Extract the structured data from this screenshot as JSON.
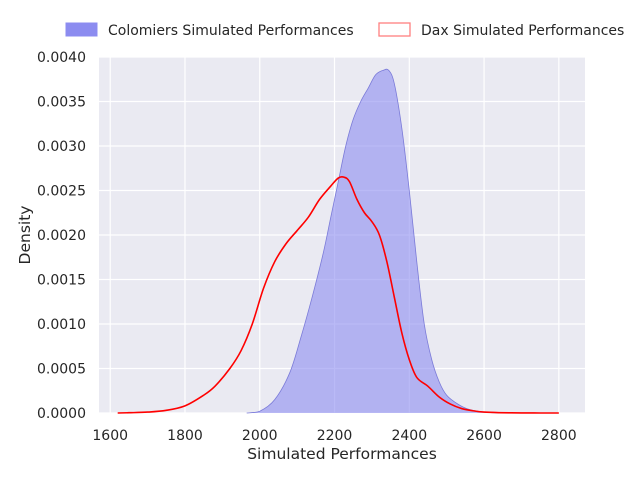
{
  "chart_data": {
    "type": "area",
    "title": "",
    "xlabel": "Simulated Performances",
    "ylabel": "Density",
    "xlim": [
      1570,
      2870
    ],
    "ylim": [
      0,
      0.004
    ],
    "xticks": [
      1600,
      1800,
      2000,
      2200,
      2400,
      2600,
      2800
    ],
    "yticks": [
      0.0,
      0.0005,
      0.001,
      0.0015,
      0.002,
      0.0025,
      0.003,
      0.0035,
      0.004
    ],
    "xtick_labels": [
      "1600",
      "1800",
      "2000",
      "2200",
      "2400",
      "2600",
      "2800"
    ],
    "ytick_labels": [
      "0.0000",
      "0.0005",
      "0.0010",
      "0.0015",
      "0.0020",
      "0.0025",
      "0.0030",
      "0.0035",
      "0.0040"
    ],
    "grid": true,
    "legend_position": "top",
    "series": [
      {
        "name": "Colomiers Simulated Performances",
        "style": "filled",
        "color": "#8c8cf0",
        "x": [
          1965,
          2000,
          2040,
          2080,
          2110,
          2140,
          2170,
          2190,
          2210,
          2230,
          2250,
          2270,
          2290,
          2310,
          2330,
          2345,
          2360,
          2380,
          2400,
          2420,
          2440,
          2460,
          2480,
          2500,
          2530,
          2560,
          2600,
          2640
        ],
        "y": [
          0.0,
          2e-05,
          0.00015,
          0.00045,
          0.00085,
          0.0013,
          0.0018,
          0.0022,
          0.0026,
          0.003,
          0.0033,
          0.0035,
          0.00365,
          0.0038,
          0.00385,
          0.00385,
          0.0037,
          0.0032,
          0.0025,
          0.0017,
          0.001,
          0.0006,
          0.00035,
          0.0002,
          0.0001,
          4e-05,
          1e-05,
          0.0
        ]
      },
      {
        "name": "Dax Simulated Performances",
        "style": "line",
        "color": "#ff0000",
        "x": [
          1620,
          1650,
          1700,
          1750,
          1800,
          1850,
          1880,
          1920,
          1950,
          1980,
          2010,
          2040,
          2070,
          2100,
          2130,
          2160,
          2190,
          2210,
          2225,
          2240,
          2260,
          2280,
          2300,
          2320,
          2340,
          2360,
          2380,
          2400,
          2420,
          2450,
          2480,
          2510,
          2540,
          2570,
          2600,
          2640,
          2700,
          2750,
          2800
        ],
        "y": [
          0.0,
          3e-06,
          1e-05,
          3e-05,
          8e-05,
          0.0002,
          0.0003,
          0.0005,
          0.0007,
          0.001,
          0.0014,
          0.0017,
          0.0019,
          0.00205,
          0.0022,
          0.0024,
          0.00255,
          0.00264,
          0.00265,
          0.0026,
          0.0024,
          0.00225,
          0.00215,
          0.002,
          0.0017,
          0.0013,
          0.0009,
          0.0006,
          0.0004,
          0.0003,
          0.00018,
          0.0001,
          5e-05,
          2.5e-05,
          1e-05,
          4e-06,
          1e-06,
          0.0,
          0.0
        ]
      }
    ]
  }
}
